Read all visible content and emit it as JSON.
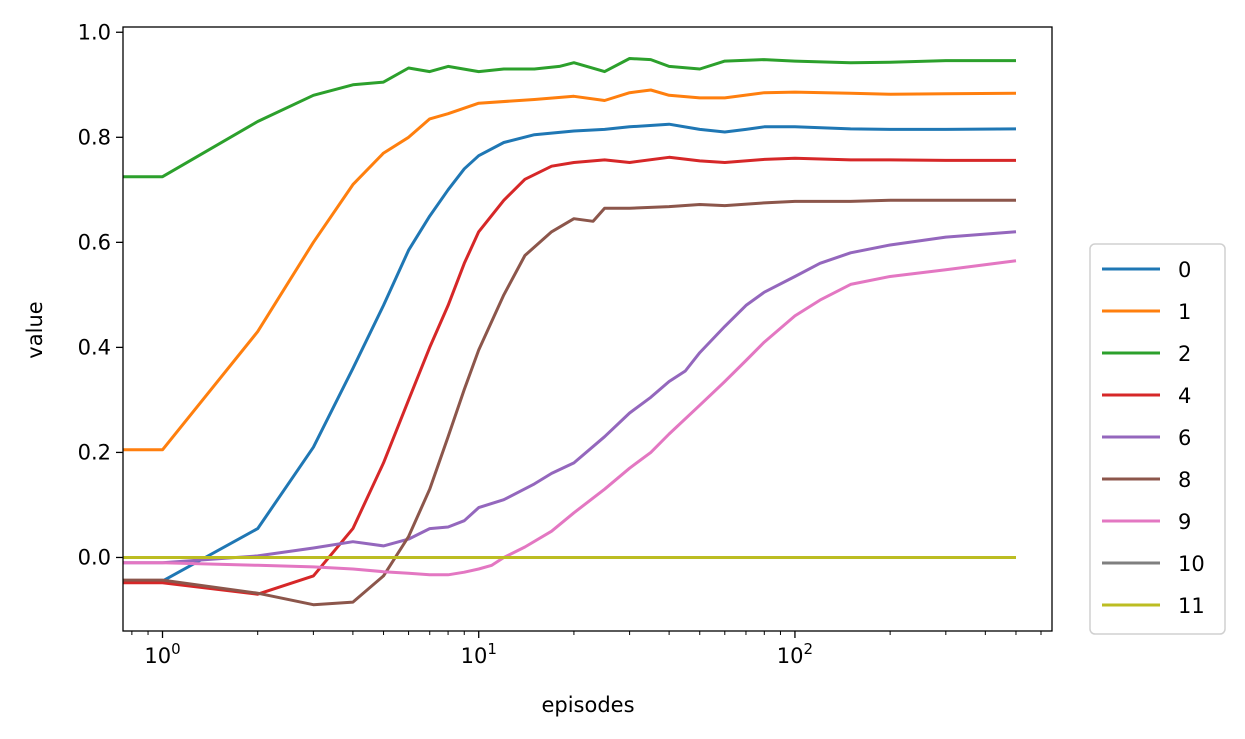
{
  "chart_data": {
    "type": "line",
    "xlabel": "episodes",
    "ylabel": "value",
    "x_scale": "log",
    "xlim": [
      0.75,
      650
    ],
    "ylim": [
      -0.14,
      1.01
    ],
    "x_ticks": [
      {
        "value": 1,
        "base": "10",
        "exp": "0"
      },
      {
        "value": 10,
        "base": "10",
        "exp": "1"
      },
      {
        "value": 100,
        "base": "10",
        "exp": "2"
      }
    ],
    "y_ticks": [
      {
        "value": 0.0,
        "label": "0.0"
      },
      {
        "value": 0.2,
        "label": "0.2"
      },
      {
        "value": 0.4,
        "label": "0.4"
      },
      {
        "value": 0.6,
        "label": "0.6"
      },
      {
        "value": 0.8,
        "label": "0.8"
      },
      {
        "value": 1.0,
        "label": "1.0"
      }
    ],
    "grid": false,
    "legend_position": "right",
    "series": [
      {
        "name": "0",
        "color": "#1f77b4",
        "points": [
          [
            0.75,
            -0.045
          ],
          [
            1,
            -0.045
          ],
          [
            2,
            0.055
          ],
          [
            3,
            0.21
          ],
          [
            4,
            0.36
          ],
          [
            5,
            0.48
          ],
          [
            6,
            0.585
          ],
          [
            7,
            0.65
          ],
          [
            8,
            0.7
          ],
          [
            9,
            0.74
          ],
          [
            10,
            0.765
          ],
          [
            12,
            0.79
          ],
          [
            15,
            0.805
          ],
          [
            20,
            0.812
          ],
          [
            25,
            0.815
          ],
          [
            30,
            0.82
          ],
          [
            40,
            0.825
          ],
          [
            50,
            0.815
          ],
          [
            60,
            0.81
          ],
          [
            70,
            0.815
          ],
          [
            80,
            0.82
          ],
          [
            100,
            0.82
          ],
          [
            150,
            0.816
          ],
          [
            200,
            0.815
          ],
          [
            300,
            0.815
          ],
          [
            500,
            0.816
          ]
        ]
      },
      {
        "name": "1",
        "color": "#ff7f0e",
        "points": [
          [
            0.75,
            0.205
          ],
          [
            1,
            0.205
          ],
          [
            2,
            0.43
          ],
          [
            3,
            0.6
          ],
          [
            4,
            0.71
          ],
          [
            5,
            0.77
          ],
          [
            6,
            0.8
          ],
          [
            7,
            0.835
          ],
          [
            8,
            0.845
          ],
          [
            10,
            0.865
          ],
          [
            15,
            0.872
          ],
          [
            20,
            0.878
          ],
          [
            25,
            0.87
          ],
          [
            30,
            0.885
          ],
          [
            35,
            0.89
          ],
          [
            40,
            0.88
          ],
          [
            50,
            0.875
          ],
          [
            60,
            0.875
          ],
          [
            80,
            0.885
          ],
          [
            100,
            0.886
          ],
          [
            150,
            0.884
          ],
          [
            200,
            0.882
          ],
          [
            300,
            0.883
          ],
          [
            500,
            0.884
          ]
        ]
      },
      {
        "name": "2",
        "color": "#2ca02c",
        "points": [
          [
            0.75,
            0.725
          ],
          [
            1,
            0.725
          ],
          [
            2,
            0.83
          ],
          [
            3,
            0.88
          ],
          [
            4,
            0.9
          ],
          [
            5,
            0.905
          ],
          [
            6,
            0.932
          ],
          [
            7,
            0.925
          ],
          [
            8,
            0.935
          ],
          [
            10,
            0.925
          ],
          [
            12,
            0.93
          ],
          [
            15,
            0.93
          ],
          [
            18,
            0.935
          ],
          [
            20,
            0.942
          ],
          [
            25,
            0.925
          ],
          [
            30,
            0.95
          ],
          [
            35,
            0.948
          ],
          [
            40,
            0.935
          ],
          [
            50,
            0.93
          ],
          [
            60,
            0.945
          ],
          [
            80,
            0.948
          ],
          [
            100,
            0.945
          ],
          [
            150,
            0.942
          ],
          [
            200,
            0.943
          ],
          [
            300,
            0.946
          ],
          [
            500,
            0.946
          ]
        ]
      },
      {
        "name": "4",
        "color": "#d62728",
        "points": [
          [
            0.75,
            -0.048
          ],
          [
            1,
            -0.048
          ],
          [
            2,
            -0.07
          ],
          [
            3,
            -0.035
          ],
          [
            4,
            0.055
          ],
          [
            5,
            0.18
          ],
          [
            6,
            0.3
          ],
          [
            7,
            0.4
          ],
          [
            8,
            0.48
          ],
          [
            9,
            0.56
          ],
          [
            10,
            0.62
          ],
          [
            12,
            0.68
          ],
          [
            14,
            0.72
          ],
          [
            17,
            0.745
          ],
          [
            20,
            0.752
          ],
          [
            25,
            0.757
          ],
          [
            30,
            0.752
          ],
          [
            40,
            0.762
          ],
          [
            50,
            0.755
          ],
          [
            60,
            0.752
          ],
          [
            80,
            0.758
          ],
          [
            100,
            0.76
          ],
          [
            150,
            0.757
          ],
          [
            200,
            0.757
          ],
          [
            300,
            0.756
          ],
          [
            500,
            0.756
          ]
        ]
      },
      {
        "name": "6",
        "color": "#9467bd",
        "points": [
          [
            0.75,
            -0.01
          ],
          [
            1,
            -0.01
          ],
          [
            2,
            0.003
          ],
          [
            3,
            0.018
          ],
          [
            4,
            0.03
          ],
          [
            5,
            0.022
          ],
          [
            6,
            0.035
          ],
          [
            7,
            0.055
          ],
          [
            8,
            0.058
          ],
          [
            9,
            0.07
          ],
          [
            10,
            0.095
          ],
          [
            12,
            0.11
          ],
          [
            15,
            0.14
          ],
          [
            17,
            0.16
          ],
          [
            20,
            0.18
          ],
          [
            25,
            0.23
          ],
          [
            30,
            0.275
          ],
          [
            35,
            0.305
          ],
          [
            40,
            0.335
          ],
          [
            45,
            0.355
          ],
          [
            50,
            0.39
          ],
          [
            60,
            0.44
          ],
          [
            70,
            0.48
          ],
          [
            80,
            0.505
          ],
          [
            100,
            0.535
          ],
          [
            120,
            0.56
          ],
          [
            150,
            0.58
          ],
          [
            200,
            0.595
          ],
          [
            300,
            0.61
          ],
          [
            500,
            0.62
          ]
        ]
      },
      {
        "name": "8",
        "color": "#8c564b",
        "points": [
          [
            0.75,
            -0.043
          ],
          [
            1,
            -0.043
          ],
          [
            2,
            -0.068
          ],
          [
            3,
            -0.09
          ],
          [
            4,
            -0.085
          ],
          [
            5,
            -0.035
          ],
          [
            6,
            0.04
          ],
          [
            7,
            0.13
          ],
          [
            8,
            0.23
          ],
          [
            9,
            0.32
          ],
          [
            10,
            0.395
          ],
          [
            12,
            0.5
          ],
          [
            14,
            0.575
          ],
          [
            17,
            0.62
          ],
          [
            20,
            0.645
          ],
          [
            23,
            0.64
          ],
          [
            25,
            0.665
          ],
          [
            30,
            0.665
          ],
          [
            40,
            0.668
          ],
          [
            50,
            0.672
          ],
          [
            60,
            0.67
          ],
          [
            80,
            0.675
          ],
          [
            100,
            0.678
          ],
          [
            150,
            0.678
          ],
          [
            200,
            0.68
          ],
          [
            300,
            0.68
          ],
          [
            500,
            0.68
          ]
        ]
      },
      {
        "name": "9",
        "color": "#e377c2",
        "points": [
          [
            0.75,
            -0.01
          ],
          [
            1,
            -0.01
          ],
          [
            2,
            -0.015
          ],
          [
            3,
            -0.018
          ],
          [
            4,
            -0.022
          ],
          [
            5,
            -0.027
          ],
          [
            6,
            -0.03
          ],
          [
            7,
            -0.033
          ],
          [
            8,
            -0.033
          ],
          [
            9,
            -0.028
          ],
          [
            10,
            -0.022
          ],
          [
            11,
            -0.015
          ],
          [
            12,
            0.0
          ],
          [
            14,
            0.02
          ],
          [
            17,
            0.05
          ],
          [
            20,
            0.085
          ],
          [
            25,
            0.13
          ],
          [
            30,
            0.17
          ],
          [
            35,
            0.2
          ],
          [
            40,
            0.235
          ],
          [
            50,
            0.29
          ],
          [
            60,
            0.335
          ],
          [
            70,
            0.375
          ],
          [
            80,
            0.41
          ],
          [
            100,
            0.46
          ],
          [
            120,
            0.49
          ],
          [
            150,
            0.52
          ],
          [
            200,
            0.535
          ],
          [
            300,
            0.548
          ],
          [
            500,
            0.565
          ]
        ]
      },
      {
        "name": "10",
        "color": "#7f7f7f",
        "points": [
          [
            0.75,
            0.0
          ],
          [
            500,
            0.0
          ]
        ]
      },
      {
        "name": "11",
        "color": "#bcbd22",
        "points": [
          [
            0.75,
            0.0
          ],
          [
            500,
            0.0
          ]
        ]
      }
    ]
  }
}
